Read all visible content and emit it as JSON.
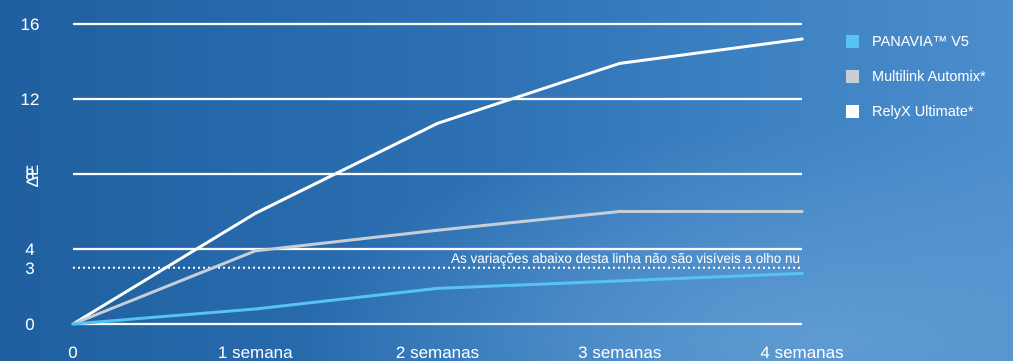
{
  "chart_data": {
    "type": "line",
    "ylabel": "ΔE",
    "xlabel": "",
    "x_categories": [
      "0",
      "1 semana",
      "2 semanas",
      "3 semanas",
      "4 semanas"
    ],
    "y_ticks": [
      0,
      3,
      4,
      8,
      12,
      16
    ],
    "y_tick_labels": [
      "0",
      "3",
      "4",
      "8",
      "12",
      "16"
    ],
    "ylim": [
      0,
      16
    ],
    "grid": "horizontal",
    "legend_position": "top-right",
    "series": [
      {
        "name": "PANAVIA™ V5",
        "color": "#56c3f2",
        "values": [
          0,
          0.8,
          1.9,
          2.3,
          2.7
        ]
      },
      {
        "name": "Multilink Automix*",
        "color": "#c6cfd8",
        "values": [
          0,
          3.9,
          5.0,
          6.0,
          6.0
        ]
      },
      {
        "name": "RelyX Ultimate*",
        "color": "#ffffff",
        "values": [
          0,
          5.9,
          10.7,
          13.9,
          15.2
        ]
      }
    ],
    "threshold": {
      "value": 3,
      "label": "As variações abaixo desta linha não são visíveis a olho nu"
    }
  }
}
